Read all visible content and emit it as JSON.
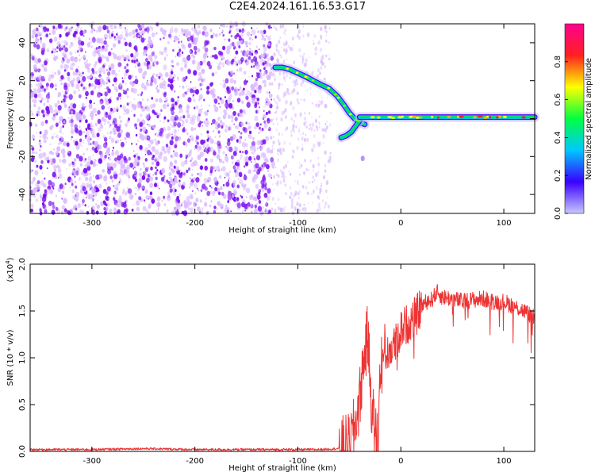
{
  "title": "C2E4.2024.161.16.53.G17",
  "colors": {
    "snr_line": "#ee3333",
    "spectrogram_noise": "#7a10f0",
    "spectrogram_noise_light": "#d9b8ff",
    "colorbar_stops": [
      "#c8c8ff",
      "#3a00ff",
      "#00c8ff",
      "#00ff40",
      "#ffff00",
      "#ff2020",
      "#ff0090"
    ]
  },
  "chart_data": [
    {
      "id": "spectrogram",
      "type": "heatmap",
      "title": "",
      "xlabel": "Height of straight line (km)",
      "ylabel": "Frequency (Hz)",
      "xlim": [
        -360,
        130
      ],
      "ylim": [
        -50,
        50
      ],
      "xticks": [
        -300,
        -200,
        -100,
        0,
        100
      ],
      "yticks": [
        -40,
        -20,
        0,
        20,
        40
      ],
      "noise_region": {
        "x": [
          -360,
          -125
        ],
        "density": "high"
      },
      "sparse_noise_region": {
        "x": [
          -125,
          -68
        ],
        "density": "low"
      },
      "doppler_trace": {
        "x": [
          -122,
          -115,
          -108,
          -100,
          -92,
          -85,
          -78,
          -70,
          -62,
          -55,
          -50,
          -45,
          -40,
          -35
        ],
        "y": [
          27,
          27,
          26,
          24,
          22,
          20,
          18,
          16,
          12,
          7,
          3,
          0,
          -2,
          -3
        ]
      },
      "branch_trace": {
        "x": [
          -58,
          -53,
          -48,
          -44,
          -40
        ],
        "y": [
          -10,
          -9,
          -7,
          -4,
          -1
        ]
      },
      "carrier_line": {
        "x": [
          -40,
          130
        ],
        "y": 0.8
      },
      "gridlines": false
    },
    {
      "id": "colorbar",
      "type": "colorbar",
      "label": "Normalized spectral amplitude",
      "range": [
        0.0,
        1.0
      ],
      "ticks": [
        "0.0",
        "0.2",
        "0.4",
        "0.6",
        "0.8"
      ]
    },
    {
      "id": "snr",
      "type": "line",
      "title": "",
      "xlabel": "Height of straight line (km)",
      "ylabel": "SNR (10 * v/v)",
      "y_multiplier": "(x10",
      "y_multiplier_exp": "4",
      "y_multiplier_close": ")",
      "xlim": [
        -360,
        130
      ],
      "ylim": [
        0,
        2.0
      ],
      "xticks": [
        -300,
        -200,
        -100,
        0,
        100
      ],
      "yticks": [
        "0.0",
        "0.5",
        "1.0",
        "1.5",
        "2.0"
      ],
      "series": [
        {
          "x": [
            -360,
            -300,
            -250,
            -200,
            -150,
            -100,
            -80,
            -60,
            -50,
            -45,
            -40,
            -37,
            -35,
            -32,
            -30,
            -28,
            -25,
            -22,
            -20,
            -15,
            -10,
            -5,
            0,
            5,
            10,
            15,
            20,
            25,
            30,
            35,
            40,
            50,
            60,
            70,
            80,
            90,
            100,
            110,
            120,
            130
          ],
          "y": [
            0.02,
            0.02,
            0.03,
            0.02,
            0.02,
            0.02,
            0.02,
            0.03,
            0.06,
            0.25,
            0.55,
            0.9,
            1.05,
            1.25,
            0.8,
            0.45,
            0.2,
            0.1,
            0.9,
            1.05,
            1.1,
            1.15,
            1.3,
            1.35,
            1.4,
            1.45,
            1.55,
            1.6,
            1.62,
            1.7,
            1.65,
            1.63,
            1.6,
            1.62,
            1.63,
            1.6,
            1.6,
            1.55,
            1.5,
            1.42
          ]
        }
      ],
      "gridlines": false
    }
  ]
}
